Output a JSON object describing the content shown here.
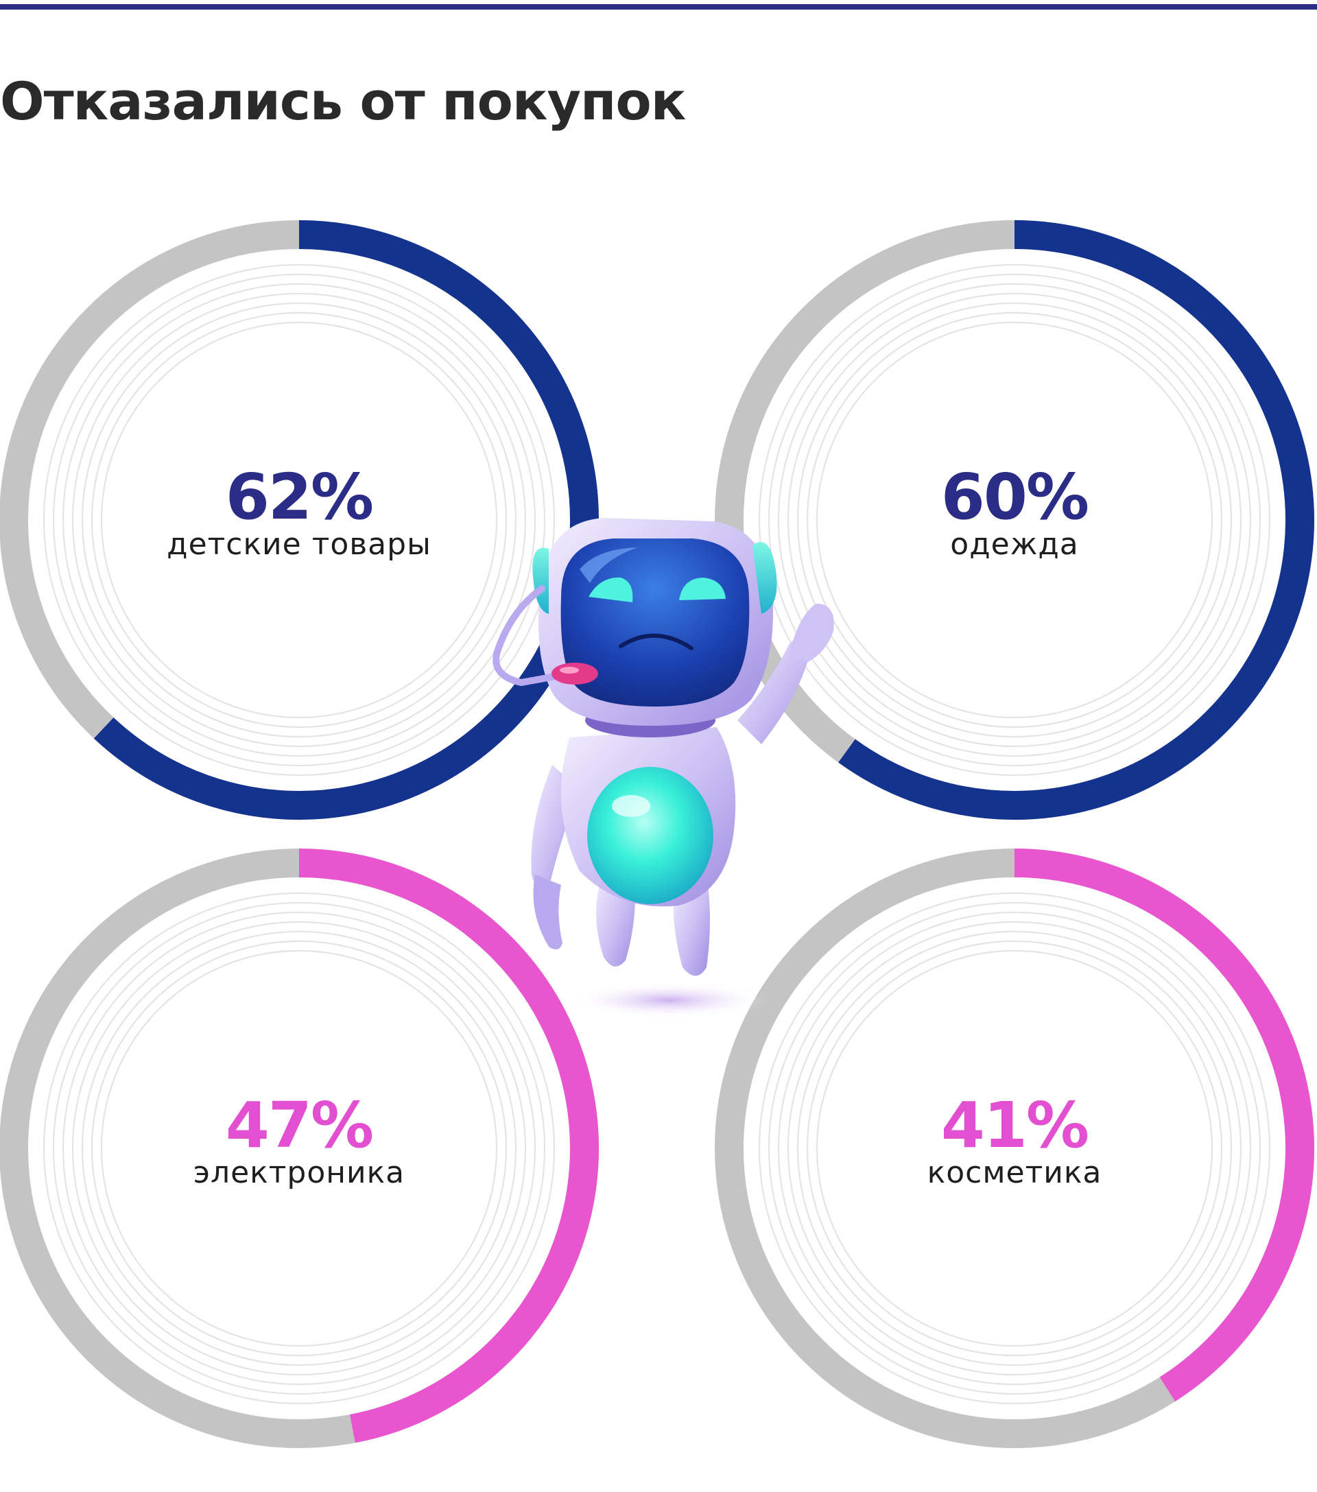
{
  "title": "Отказались от покупок",
  "colors": {
    "rule": "#2b2e82",
    "track": "#c4c4c4",
    "inner_rings": "#e4e4e4",
    "navy": "#14338f",
    "navy_text": "#2a2c86",
    "pink": "#e955cf",
    "pink_text": "#e24fd0"
  },
  "illustration": {
    "icon": "robot-mascot-icon"
  },
  "chart_data": [
    {
      "type": "pie",
      "value": 62,
      "label": "62%",
      "category": "детские товары",
      "color": "navy"
    },
    {
      "type": "pie",
      "value": 60,
      "label": "60%",
      "category": "одежда",
      "color": "navy"
    },
    {
      "type": "pie",
      "value": 47,
      "label": "47%",
      "category": "электроника",
      "color": "pink"
    },
    {
      "type": "pie",
      "value": 41,
      "label": "41%",
      "category": "косметика",
      "color": "pink"
    }
  ]
}
